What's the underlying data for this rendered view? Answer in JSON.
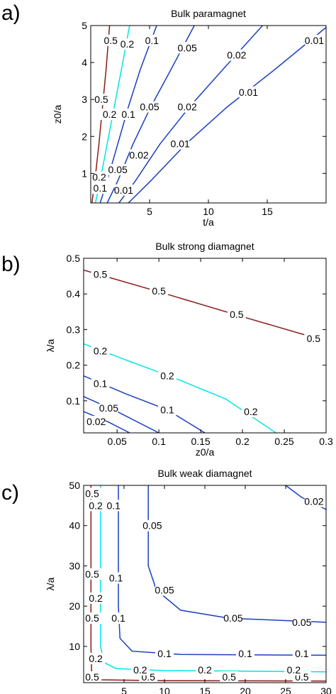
{
  "chart_data": [
    {
      "type": "contour",
      "panel_label": "a)",
      "title": "Bulk paramagnet",
      "xlabel": "t/a",
      "ylabel": "z0/a",
      "xlim": [
        0,
        20
      ],
      "ylim": [
        0.2,
        5
      ],
      "xticks": [
        5,
        10,
        15
      ],
      "yticks": [
        1,
        2,
        3,
        4,
        5
      ],
      "levels": [
        {
          "level": "0.5",
          "color": "#8b1a1a",
          "points": [
            [
              0.1,
              0.2
            ],
            [
              0.35,
              0.8
            ],
            [
              0.7,
              1.8
            ],
            [
              1.0,
              2.8
            ],
            [
              1.3,
              3.8
            ],
            [
              1.6,
              5.0
            ]
          ],
          "labels": [
            [
              0.9,
              3.0
            ],
            [
              1.7,
              4.6
            ]
          ]
        },
        {
          "level": "0.2",
          "color": "#00e5e5",
          "points": [
            [
              0.4,
              0.2
            ],
            [
              0.8,
              0.8
            ],
            [
              1.4,
              1.8
            ],
            [
              2.0,
              2.8
            ],
            [
              2.6,
              3.8
            ],
            [
              3.3,
              5.0
            ]
          ],
          "labels": [
            [
              0.5,
              0.9
            ],
            [
              1.6,
              2.6
            ],
            [
              3.1,
              4.5
            ]
          ]
        },
        {
          "level": "0.1",
          "color": "#1a3fbf",
          "points": [
            [
              0.8,
              0.2
            ],
            [
              1.4,
              0.8
            ],
            [
              2.3,
              1.8
            ],
            [
              3.2,
              2.8
            ],
            [
              4.2,
              3.8
            ],
            [
              5.6,
              5.0
            ]
          ],
          "labels": [
            [
              0.8,
              0.6
            ],
            [
              3.2,
              2.6
            ],
            [
              5.2,
              4.6
            ]
          ]
        },
        {
          "level": "0.05",
          "color": "#1a3fbf",
          "points": [
            [
              1.4,
              0.2
            ],
            [
              2.3,
              0.8
            ],
            [
              3.6,
              1.8
            ],
            [
              5.1,
              2.8
            ],
            [
              6.8,
              3.8
            ],
            [
              8.8,
              5.0
            ]
          ],
          "labels": [
            [
              2.3,
              1.1
            ],
            [
              5.0,
              2.8
            ],
            [
              8.2,
              4.4
            ]
          ]
        },
        {
          "level": "0.02",
          "color": "#1a3fbf",
          "points": [
            [
              2.4,
              0.2
            ],
            [
              3.8,
              0.8
            ],
            [
              5.9,
              1.8
            ],
            [
              8.4,
              2.8
            ],
            [
              11.2,
              3.8
            ],
            [
              14.6,
              5.0
            ]
          ],
          "labels": [
            [
              4.1,
              1.5
            ],
            [
              8.2,
              2.8
            ],
            [
              12.4,
              4.2
            ]
          ]
        },
        {
          "level": "0.01",
          "color": "#1a3fbf",
          "points": [
            [
              3.2,
              0.2
            ],
            [
              5.1,
              0.8
            ],
            [
              8.1,
              1.8
            ],
            [
              11.6,
              2.8
            ],
            [
              15.6,
              3.8
            ],
            [
              20.0,
              4.95
            ]
          ],
          "labels": [
            [
              2.8,
              0.55
            ],
            [
              7.6,
              1.8
            ],
            [
              13.4,
              3.2
            ],
            [
              19.0,
              4.6
            ]
          ]
        }
      ]
    },
    {
      "type": "contour",
      "panel_label": "b)",
      "title": "Bulk strong diamagnet",
      "xlabel": "z0/a",
      "ylabel": "λ/a",
      "xlim": [
        0.01,
        0.3
      ],
      "ylim": [
        0.01,
        0.5
      ],
      "xticks": [
        0.05,
        0.1,
        0.15,
        0.2,
        0.25,
        0.3
      ],
      "yticks": [
        0.1,
        0.2,
        0.3,
        0.4,
        0.5
      ],
      "levels": [
        {
          "level": "0.5",
          "color": "#8b1a1a",
          "points": [
            [
              0.01,
              0.467
            ],
            [
              0.1,
              0.406
            ],
            [
              0.2,
              0.336
            ],
            [
              0.285,
              0.278
            ]
          ],
          "labels": [
            [
              0.03,
              0.455
            ],
            [
              0.1,
              0.408
            ],
            [
              0.193,
              0.343
            ],
            [
              0.285,
              0.275
            ]
          ]
        },
        {
          "level": "0.2",
          "color": "#00e5e5",
          "points": [
            [
              0.01,
              0.26
            ],
            [
              0.06,
              0.215
            ],
            [
              0.12,
              0.163
            ],
            [
              0.18,
              0.105
            ],
            [
              0.24,
              0.01
            ]
          ],
          "labels": [
            [
              0.03,
              0.24
            ],
            [
              0.11,
              0.17
            ],
            [
              0.21,
              0.07
            ]
          ]
        },
        {
          "level": "0.1",
          "color": "#1a3fbf",
          "points": [
            [
              0.01,
              0.17
            ],
            [
              0.06,
              0.12
            ],
            [
              0.11,
              0.075
            ],
            [
              0.155,
              0.01
            ]
          ],
          "labels": [
            [
              0.03,
              0.148
            ],
            [
              0.11,
              0.075
            ]
          ]
        },
        {
          "level": "0.05",
          "color": "#1a3fbf",
          "points": [
            [
              0.01,
              0.112
            ],
            [
              0.05,
              0.07
            ],
            [
              0.1,
              0.01
            ]
          ],
          "labels": [
            [
              0.04,
              0.08
            ]
          ]
        },
        {
          "level": "0.02",
          "color": "#1a3fbf",
          "points": [
            [
              0.01,
              0.07
            ],
            [
              0.04,
              0.04
            ],
            [
              0.065,
              0.01
            ]
          ],
          "labels": [
            [
              0.025,
              0.042
            ]
          ]
        }
      ]
    },
    {
      "type": "contour",
      "panel_label": "c)",
      "title": "Bulk weak diamagnet",
      "xlabel": "t/a",
      "ylabel": "λ/a",
      "xlim": [
        0,
        30
      ],
      "ylim": [
        1,
        50
      ],
      "xticks": [
        5,
        10,
        15,
        20,
        25,
        30
      ],
      "yticks": [
        10,
        20,
        30,
        40,
        50
      ],
      "levels": [
        {
          "level": "0.5",
          "color": "#8b1a1a",
          "points": [
            [
              0.9,
              50
            ],
            [
              0.9,
              10
            ],
            [
              1.0,
              3
            ],
            [
              2,
              1.7
            ],
            [
              10,
              1.5
            ],
            [
              30,
              1.4
            ]
          ],
          "labels": [
            [
              0.5,
              48
            ],
            [
              0.5,
              28
            ],
            [
              0.5,
              17
            ],
            [
              0.5,
              2
            ],
            [
              8,
              1.4
            ],
            [
              18,
              1.4
            ],
            [
              27,
              1.4
            ]
          ]
        },
        {
          "level": "0.2",
          "color": "#00e5e5",
          "points": [
            [
              2.1,
              50
            ],
            [
              2.1,
              10
            ],
            [
              2.5,
              6
            ],
            [
              4,
              4.5
            ],
            [
              10,
              4.0
            ],
            [
              30,
              3.7
            ]
          ],
          "labels": [
            [
              1.5,
              45
            ],
            [
              1.5,
              22
            ],
            [
              1.5,
              7
            ],
            [
              7,
              4.2
            ],
            [
              15,
              4.2
            ],
            [
              26,
              4.2
            ]
          ]
        },
        {
          "level": "0.1",
          "color": "#1a3fbf",
          "points": [
            [
              4.3,
              50
            ],
            [
              4.3,
              20
            ],
            [
              4.5,
              12
            ],
            [
              6,
              8.8
            ],
            [
              12,
              8.0
            ],
            [
              30,
              7.8
            ]
          ],
          "labels": [
            [
              3.7,
              45
            ],
            [
              4,
              27
            ],
            [
              4.3,
              17
            ],
            [
              10,
              8.2
            ],
            [
              20,
              8.2
            ],
            [
              27,
              8.2
            ]
          ]
        },
        {
          "level": "0.05",
          "color": "#1a3fbf",
          "points": [
            [
              8.0,
              50
            ],
            [
              8.0,
              30
            ],
            [
              9,
              24
            ],
            [
              12,
              19
            ],
            [
              18,
              17
            ],
            [
              30,
              16
            ]
          ],
          "labels": [
            [
              8.5,
              40
            ],
            [
              10,
              24
            ],
            [
              18.5,
              17
            ],
            [
              27,
              16
            ]
          ]
        },
        {
          "level": "0.02",
          "color": "#1a3fbf",
          "points": [
            [
              25,
              50
            ],
            [
              27,
              47
            ],
            [
              30,
              44
            ]
          ],
          "labels": [
            [
              28.5,
              46
            ]
          ]
        }
      ]
    }
  ]
}
